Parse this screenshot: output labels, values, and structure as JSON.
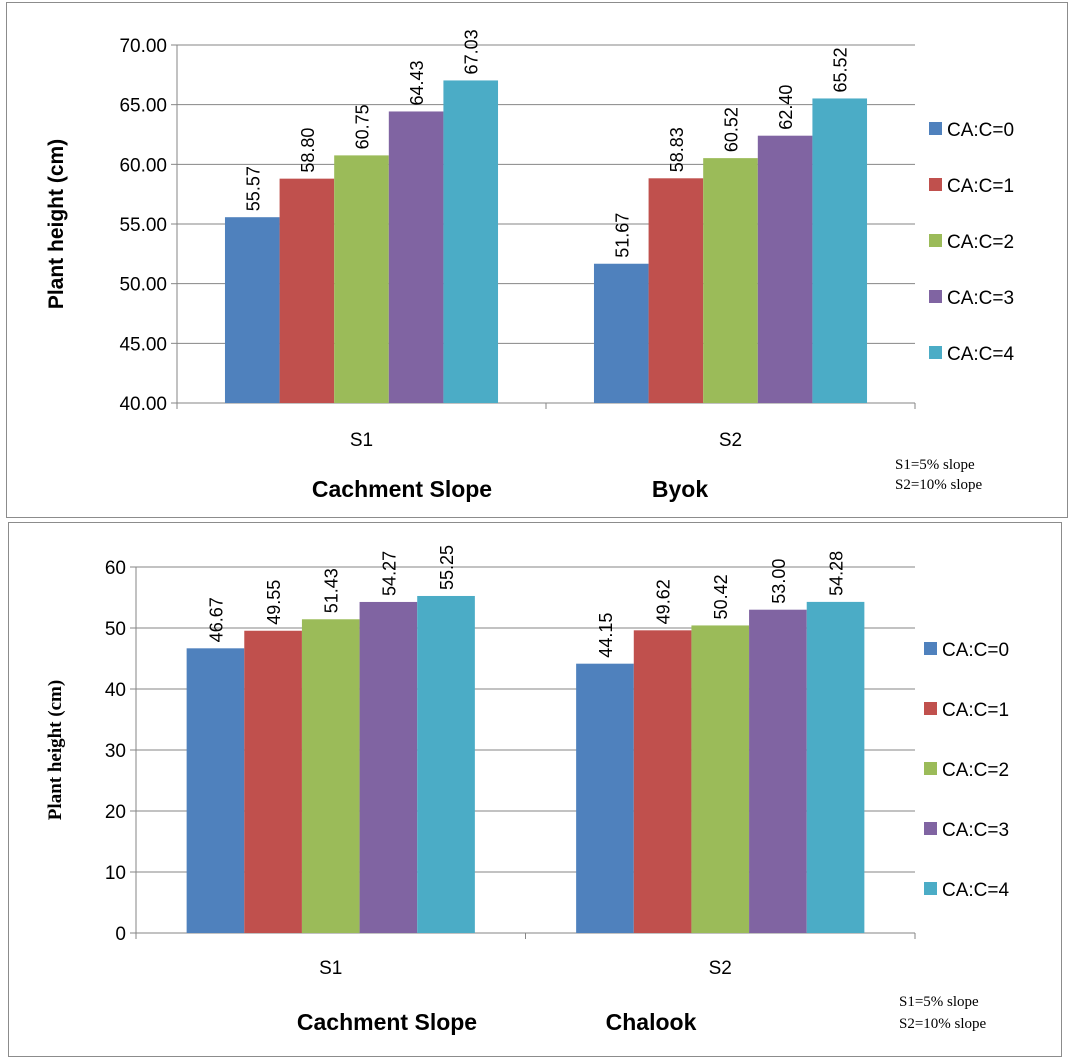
{
  "chart_data": [
    {
      "type": "bar",
      "categories": [
        "S1",
        "S2"
      ],
      "series": [
        {
          "name": "CA:C=0",
          "values": [
            55.57,
            51.67
          ],
          "labels": [
            "55.57",
            "51.67"
          ]
        },
        {
          "name": "CA:C=1",
          "values": [
            58.8,
            58.83
          ],
          "labels": [
            "58.80",
            "58.83"
          ]
        },
        {
          "name": "CA:C=2",
          "values": [
            60.75,
            60.52
          ],
          "labels": [
            "60.75",
            "60.52"
          ]
        },
        {
          "name": "CA:C=3",
          "values": [
            64.43,
            62.4
          ],
          "labels": [
            "64.43",
            "62.40"
          ]
        },
        {
          "name": "CA:C=4",
          "values": [
            67.03,
            65.52
          ],
          "labels": [
            "67.03",
            "65.52"
          ]
        }
      ],
      "ylabel": "Plant height (cm)",
      "xlabel": "Cachment Slope",
      "site": "Byok",
      "notes": [
        "S1=5% slope",
        "S2=10% slope"
      ],
      "ylim": [
        40,
        70
      ],
      "yticks": [
        "40.00",
        "45.00",
        "50.00",
        "55.00",
        "60.00",
        "65.00",
        "70.00"
      ],
      "grid": true,
      "legend": "right"
    },
    {
      "type": "bar",
      "categories": [
        "S1",
        "S2"
      ],
      "series": [
        {
          "name": "CA:C=0",
          "values": [
            46.67,
            44.15
          ],
          "labels": [
            "46.67",
            "44.15"
          ]
        },
        {
          "name": "CA:C=1",
          "values": [
            49.55,
            49.62
          ],
          "labels": [
            "49.55",
            "49.62"
          ]
        },
        {
          "name": "CA:C=2",
          "values": [
            51.43,
            50.42
          ],
          "labels": [
            "51.43",
            "50.42"
          ]
        },
        {
          "name": "CA:C=3",
          "values": [
            54.27,
            53.0
          ],
          "labels": [
            "54.27",
            "53.00"
          ]
        },
        {
          "name": "CA:C=4",
          "values": [
            55.25,
            54.28
          ],
          "labels": [
            "55.25",
            "54.28"
          ]
        }
      ],
      "ylabel": "Plant height (cm)",
      "xlabel": "Cachment Slope",
      "site": "Chalook",
      "notes": [
        "S1=5% slope",
        "S2=10% slope"
      ],
      "ylim": [
        0,
        60
      ],
      "yticks": [
        "0",
        "10",
        "20",
        "30",
        "40",
        "50",
        "60"
      ],
      "grid": true,
      "legend": "right"
    }
  ],
  "colors": {
    "series": [
      "#4f81bd",
      "#c0504d",
      "#9bbb59",
      "#8064a2",
      "#4bacc6"
    ],
    "grid": "#868686",
    "axis": "#868686",
    "text": "#000000"
  }
}
